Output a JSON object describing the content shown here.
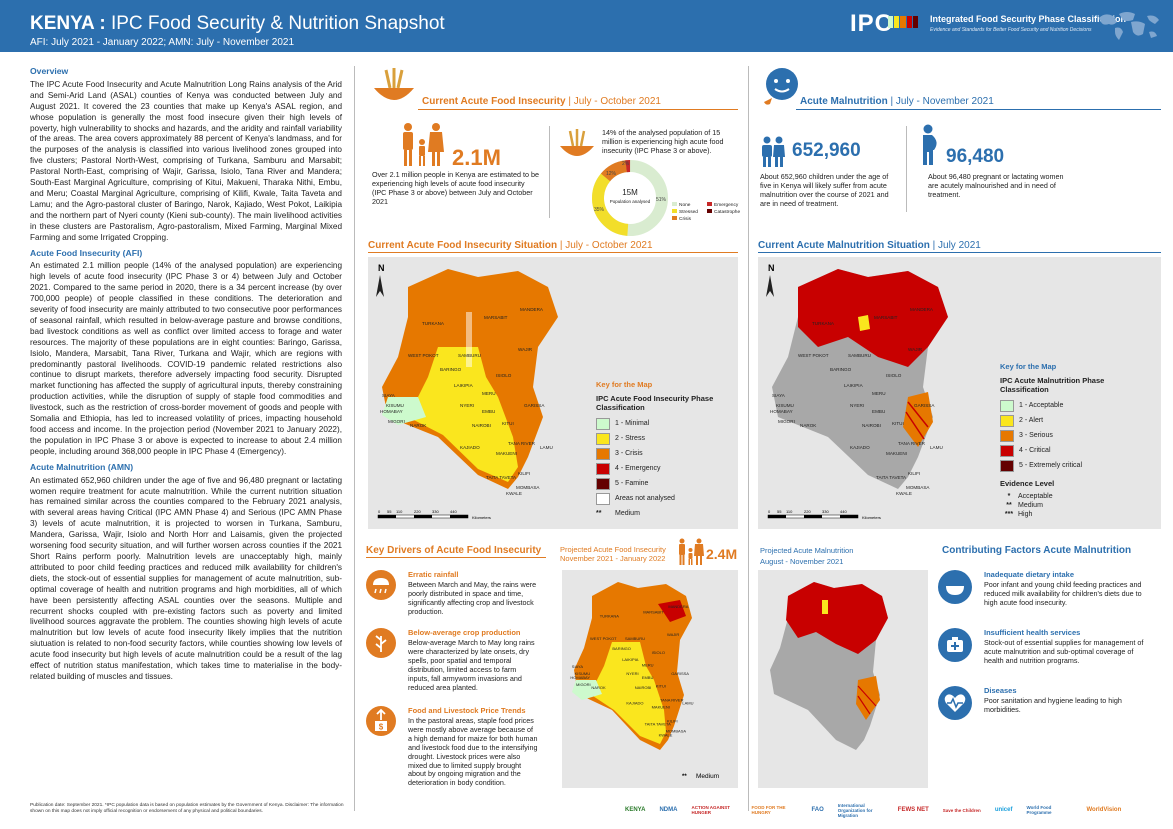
{
  "header": {
    "title_bold": "KENYA :",
    "title_rest": " IPC Food Security & Nutrition Snapshot",
    "subtitle": "AFI: July 2021 - January 2022; AMN: July - November 2021",
    "ipc_logo": "IPC",
    "ipc_name": "Integrated Food Security Phase Classification",
    "ipc_tagline": "Evidence and Standards for Better Food Security and Nutrition Decisions",
    "bar_colors": [
      "#cdfacd",
      "#fae61e",
      "#e67800",
      "#c80000",
      "#640000",
      "#2c6fae"
    ]
  },
  "overview": {
    "title": "Overview",
    "text": "The IPC Acute Food Insecurity and Acute Malnutrition Long Rains analysis of the Arid and Semi-Arid Land (ASAL) counties of Kenya was conducted between July and August 2021. It covered the 23 counties that make up Kenya's ASAL region, and whose population is generally the most food insecure given their high levels of poverty, high vulnerability to shocks and hazards, and the aridity and rainfall variability of the areas. The area covers approximately 88 percent of Kenya's landmass, and for the purposes of the analysis is classified into various livelihood zones grouped into five clusters; Pastoral North-West, comprising of Turkana, Samburu and Marsabit; Pastoral North-East, comprising of Wajir, Garissa, Isiolo, Tana River and Mandera; South-East Marginal Agriculture, comprising of Kitui, Makueni, Tharaka Nithi, Embu, and Meru; Coastal Marginal Agriculture, comprising of Kilifi, Kwale, Taita Taveta and Lamu; and the Agro-pastoral cluster of Baringo, Narok, Kajiado, West Pokot, Laikipia and the northern part of Nyeri county (Kieni sub-county). The main livelihood activities in these clusters are Pastoralism, Agro-pastoralism, Mixed Farming, Marginal Mixed Farming and some Irrigated Cropping."
  },
  "afi_section": {
    "title": "Acute Food Insecurity (AFI)",
    "text": "An estimated 2.1 million people (14% of the analysed population) are experiencing high levels of acute food insecurity (IPC Phase 3 or 4) between July and October 2021. Compared to the same period in 2020, there is a 34 percent increase (by over 700,000 people) of people classified in these conditions. The deterioration and severity of food insecurity are mainly attributed to two consecutive poor performances of seasonal rainfall, which resulted in below-average pasture and browse conditions, bad livestock conditions as well as conflict over limited access to forage and water resources. The majority of these populations are in eight counties: Baringo, Garissa, Isiolo, Mandera, Marsabit, Tana River, Turkana and Wajir, which are regions with predominantly pastoral livelihoods. COVID-19 pandemic related restrictions also continue to disrupt markets, therefore adversely impacting food security. Disrupted market functioning has affected the supply of agricultural inputs, thereby constraining production activities, while the disruption of supply of staple food commodities and livestock, such as the restriction of cross-border movement of goods and people with Somalia and Ethiopia, has led to increased volatility of prices, impacting household food access and income. In the projection period (November 2021 to January 2022), the population in IPC Phase 3 or above is expected to increase to about 2.4 million people, including around 368,000 people in IPC Phase 4 (Emergency)."
  },
  "amn_section": {
    "title": "Acute Malnutrition (AMN)",
    "text": "An estimated 652,960 children under the age of five and 96,480 pregnant or lactating women require treatment for acute malnutrition. While the current nutrition situation has remained similar across the counties compared to the February 2021 analysis, with several areas having Critical (IPC AMN Phase 4) and Serious (IPC AMN Phase 3) levels of acute malnutrition, it is projected to worsen in Turkana, Samburu, Mandera, Garissa, Wajir, Isiolo and North Horr and Laisamis, given the projected worsening food security situation, and will further worsen across counties if the 2021 Short Rains perform poorly. Malnutrition levels are unacceptably high, mainly attributed to poor child feeding practices and reduced milk availability for children's diets, the stock-out of essential supplies for management of acute malnutrition, sub-optimal coverage of health and nutrition programs and high morbidities, all of which have been persistently affecting ASAL counties over the seasons. Multiple and recurrent shocks coupled with pre-existing factors such as poverty and limited livelihood sources aggravate the problem. The counties showing high levels of acute malnutrition but low levels of acute food insecurity likely implies that the nutrition siutuation is related to non-food security factors, while counties showing low levels of acute food insecurity but high levels of acute malnutrition could be a result of the lag effect of nutrition status manifestation, which takes time to materialise in the body-related building of muscles and tissues."
  },
  "footer_note": "Publication date: September 2021. *IPC population data is based on population estimates by the Government of Kenya. Disclaimer: The information shown on this map does not imply official recognition or endorsement of any physical and political boundaries.",
  "afi_current": {
    "title": "Current Acute Food Insecurity",
    "range": " | July - October 2021",
    "big_number": "2.1M",
    "desc": "Over 2.1 million people in Kenya are estimated to be experiencing  high levels of acute food insecurity (IPC Phase 3 or above) between July and October 2021",
    "donut_caption": "14% of the analysed population of 15 million is experiencing high acute food insecurity (IPC Phase 3 or above).",
    "donut_center_big": "15M",
    "donut_center_small": "Population analysed",
    "donut_labels": [
      "51%",
      "35%",
      "12%",
      "2%"
    ],
    "donut_legend": [
      "None",
      "Stressed",
      "Crisis",
      "Emergency",
      "Catastrophe"
    ]
  },
  "amn_current": {
    "title": "Acute Malnutrition",
    "range": " | July - November 2021",
    "children_number": "652,960",
    "children_desc": "About 652,960 children under the age of five in Kenya will likely suffer from acute malnutrition over the course of 2021 and are in need of treatment.",
    "women_number": "96,480",
    "women_desc": "About 96,480 pregnant or lactating women are acutely malnourished and in need of treatment."
  },
  "afi_map": {
    "title": "Current Acute Food Insecurity Situation",
    "range": " | July - October 2021",
    "north": "N",
    "scale_ticks": [
      "0",
      "55",
      "110",
      "220",
      "330",
      "440"
    ],
    "scale_unit": "Kilometers",
    "legend_key": "Key for the Map",
    "legend_heading": "IPC Acute Food Insecurity Phase Classification",
    "legend_items": [
      "1 - Minimal",
      "2 - Stress",
      "3 - Crisis",
      "4 - Emergency",
      "5 - Famine",
      "Areas not analysed"
    ],
    "legend_colors": [
      "#cdfacd",
      "#fae61e",
      "#e67800",
      "#c80000",
      "#640000",
      "#ffffff"
    ],
    "medium_marker": "**",
    "medium_label": "Medium",
    "labels": [
      "TURKANA",
      "MARSABIT",
      "MANDERA",
      "WAJIR",
      "WEST POKOT",
      "SAMBURU",
      "ISIOLO",
      "BARINGO",
      "LAIKIPIA",
      "MERU",
      "GARISSA",
      "KITUI",
      "TANA RIVER",
      "LAMU",
      "KILIFI",
      "NAROK",
      "KAJIADO",
      "MAKUENI",
      "TAITA TAVETA",
      "MOMBASA",
      "KWALE",
      "NYERI",
      "EMBU",
      "NAIROBI",
      "SIAYA",
      "KISUMU",
      "HOMABAY",
      "MIGORI"
    ]
  },
  "amn_map": {
    "title": "Current Acute Malnutrition Situation",
    "range": " | July 2021",
    "north": "N",
    "scale_ticks": [
      "0",
      "55",
      "110",
      "220",
      "330",
      "440"
    ],
    "scale_unit": "Kilometers",
    "legend_key": "Key for the Map",
    "legend_heading": "IPC Acute Malnutrition Phase Classification",
    "legend_items": [
      "1 - Acceptable",
      "2 - Alert",
      "3 - Serious",
      "4 - Critical",
      "5 - Extremely critical"
    ],
    "legend_colors": [
      "#cdfacd",
      "#fae61e",
      "#e67800",
      "#c80000",
      "#640000"
    ],
    "evidence_title": "Evidence Level",
    "evidence_items": [
      {
        "marker": "*",
        "label": "Acceptable"
      },
      {
        "marker": "**",
        "label": "Medium"
      },
      {
        "marker": "***",
        "label": "High"
      }
    ]
  },
  "drivers": {
    "title": "Key Drivers of Acute Food Insecurity",
    "items": [
      {
        "icon": "rain-icon",
        "title": "Erratic rainfall",
        "text": "Between March and May, the rains were poorly distributed in space and time, significantly affecting crop and livestock production."
      },
      {
        "icon": "crop-icon",
        "title": "Below-average crop production",
        "text": "Below-average March to May long rains were characterized by late onsets, dry spells, poor spatial and temporal distribution, limited access to farm inputs, fall armyworm invasions and reduced area planted."
      },
      {
        "icon": "price-icon",
        "title": "Food and Livestock Price Trends",
        "text": "In the pastoral areas, staple food prices were mostly above average because of a high demand for maize for both human and livestock food due to the intensifying drought. Livestock prices were also mixed due to limited supply brought about by ongoing migration and the deterioration in body condition."
      }
    ]
  },
  "projected_afi": {
    "title": "Projected Acute Food Insecurity",
    "range": "November 2021 - January 2022",
    "big_number": "2.4M",
    "medium_marker": "**",
    "medium_label": "Medium"
  },
  "projected_amn": {
    "title": "Projected Acute Malnutrition",
    "range": "August - November 2021"
  },
  "contributing": {
    "title": "Contributing Factors Acute Malnutrition",
    "items": [
      {
        "icon": "bowl-icon",
        "title": "Inadequate dietary intake",
        "text": "Poor infant and young child feeding practices and reduced milk availability for children's diets due to high acute food insecurity."
      },
      {
        "icon": "health-icon",
        "title": "Insufficient health services",
        "text": "Stock-out of essential supplies for management of acute malnutrition and sub-optimal coverage of health and nutrition programs."
      },
      {
        "icon": "heart-icon",
        "title": "Diseases",
        "text": "Poor sanitation and hygiene leading to high morbidities."
      }
    ]
  },
  "logos": [
    "KENYA",
    "NDMA",
    "ACTION AGAINST HUNGER",
    "FOOD FOR THE HUNGRY",
    "FAO",
    "International Organization for Migration",
    "FEWS NET",
    "Save the Children",
    "unicef",
    "World Food Programme",
    "WorldVision"
  ]
}
